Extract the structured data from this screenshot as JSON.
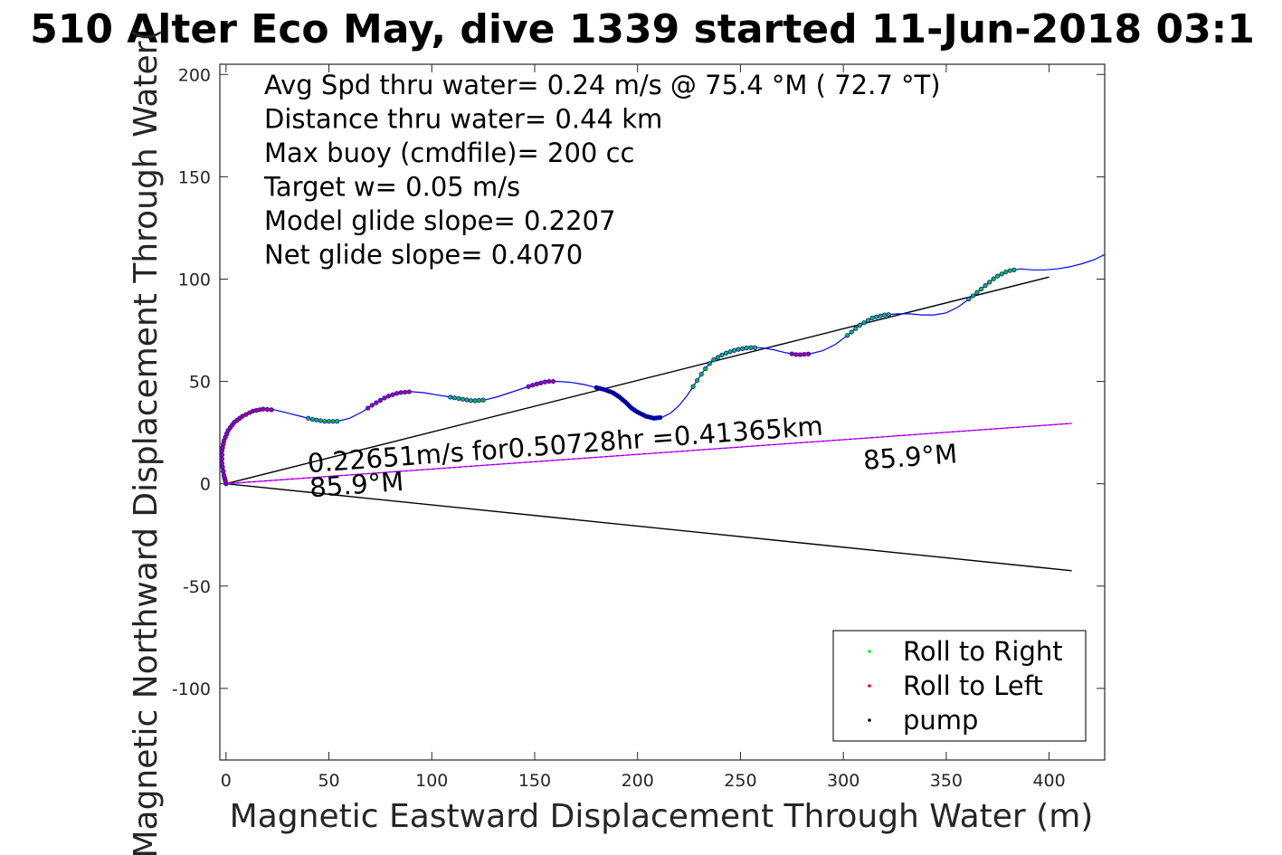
{
  "chart_data": {
    "type": "line",
    "title": "510 Alter Eco May, dive 1339 started 11-Jun-2018 03:1",
    "xlabel": "Magnetic Eastward Displacement Through Water (m)",
    "ylabel": "Magnetic Northward Displacement Through Water(",
    "xlim": [
      -3,
      427
    ],
    "ylim": [
      -135,
      205
    ],
    "xticks": [
      0,
      50,
      100,
      150,
      200,
      250,
      300,
      350,
      400
    ],
    "yticks": [
      200,
      150,
      100,
      50,
      0,
      -50,
      -100
    ],
    "x_tick_labels": [
      "0",
      "50",
      "100",
      "150",
      "200",
      "250",
      "300",
      "350",
      "400"
    ],
    "y_tick_labels": [
      "200",
      "150",
      "100",
      "50",
      "0",
      "-50",
      "-100"
    ],
    "grid": true,
    "stats": [
      "Avg Spd thru water=  0.24 m/s @  75.4 °M ( 72.7 °T)",
      "Distance thru water=  0.44 km",
      "Max buoy (cmdfile)= 200 cc",
      "Target w= 0.05 m/s",
      "Model glide slope= 0.2207",
      "Net glide slope= 0.4070"
    ],
    "track": {
      "color": "#0000ff",
      "points": [
        [
          0,
          0
        ],
        [
          -1,
          4
        ],
        [
          -2,
          10
        ],
        [
          -2,
          16
        ],
        [
          -1,
          21
        ],
        [
          1,
          26
        ],
        [
          4,
          30
        ],
        [
          8,
          33
        ],
        [
          13,
          35.5
        ],
        [
          18,
          36.5
        ],
        [
          24,
          36
        ],
        [
          30,
          34.5
        ],
        [
          36,
          33
        ],
        [
          42,
          31.5
        ],
        [
          48,
          30.5
        ],
        [
          54,
          30.5
        ],
        [
          60,
          32
        ],
        [
          66,
          35
        ],
        [
          72,
          39
        ],
        [
          78,
          42.5
        ],
        [
          84,
          44.5
        ],
        [
          90,
          45
        ],
        [
          96,
          44.5
        ],
        [
          102,
          43.5
        ],
        [
          108,
          42.5
        ],
        [
          114,
          41.5
        ],
        [
          120,
          40.5
        ],
        [
          126,
          41
        ],
        [
          132,
          42.5
        ],
        [
          138,
          44.5
        ],
        [
          144,
          46.5
        ],
        [
          150,
          48.5
        ],
        [
          156,
          50
        ],
        [
          162,
          50
        ],
        [
          168,
          49.5
        ],
        [
          174,
          48.5
        ],
        [
          180,
          47
        ],
        [
          184,
          46
        ],
        [
          188,
          44.5
        ],
        [
          191,
          42.5
        ],
        [
          194,
          40
        ],
        [
          197,
          37
        ],
        [
          200,
          35
        ],
        [
          204,
          33
        ],
        [
          208,
          32
        ],
        [
          212,
          32.5
        ],
        [
          216,
          34.5
        ],
        [
          220,
          38
        ],
        [
          224,
          43
        ],
        [
          228,
          49
        ],
        [
          232,
          55
        ],
        [
          236,
          60
        ],
        [
          242,
          63.5
        ],
        [
          248,
          65.5
        ],
        [
          254,
          66.5
        ],
        [
          260,
          66.5
        ],
        [
          266,
          65.5
        ],
        [
          272,
          64
        ],
        [
          278,
          63
        ],
        [
          284,
          63.5
        ],
        [
          290,
          65
        ],
        [
          296,
          68
        ],
        [
          302,
          72.5
        ],
        [
          308,
          77.5
        ],
        [
          314,
          81
        ],
        [
          320,
          82.5
        ],
        [
          326,
          83
        ],
        [
          332,
          83
        ],
        [
          338,
          82.5
        ],
        [
          344,
          82.5
        ],
        [
          350,
          83.5
        ],
        [
          356,
          86.5
        ],
        [
          362,
          91
        ],
        [
          368,
          96
        ],
        [
          374,
          101
        ],
        [
          380,
          104
        ],
        [
          386,
          105
        ],
        [
          392,
          104.5
        ],
        [
          398,
          104.5
        ],
        [
          404,
          105
        ],
        [
          410,
          106
        ],
        [
          416,
          107.5
        ],
        [
          422,
          109.5
        ],
        [
          427,
          112
        ]
      ]
    },
    "roll_right_segments": [
      [
        0,
        4
      ],
      [
        40,
        54
      ],
      [
        109,
        125
      ],
      [
        227,
        258
      ],
      [
        302,
        323
      ],
      [
        361,
        384
      ]
    ],
    "roll_left_segments": [
      [
        0,
        19
      ],
      [
        69,
        90
      ],
      [
        147,
        159
      ],
      [
        275,
        284
      ]
    ],
    "pump_segment": [
      180,
      211
    ],
    "lines": [
      {
        "name": "net-glide-line",
        "color": "#000000",
        "points": [
          [
            0,
            0
          ],
          [
            400,
            101
          ]
        ]
      },
      {
        "name": "heading-line",
        "color": "#000000",
        "points": [
          [
            0,
            0
          ],
          [
            411,
            -42.5
          ]
        ]
      },
      {
        "name": "current-line",
        "color": "#ff00ff",
        "points": [
          [
            0,
            0
          ],
          [
            411,
            29.5
          ]
        ]
      },
      {
        "name": "current-line-overlay",
        "color": "#0000ff",
        "points": [
          [
            0,
            0
          ],
          [
            411,
            29.5
          ]
        ]
      }
    ],
    "annotations": [
      {
        "text": "0.22651m/s for0.50728hr =0.41365km",
        "x": 40,
        "y": 5.5,
        "rotate": -4.2
      },
      {
        "text": "85.9°M",
        "x": 41,
        "y": -6.5,
        "rotate": -4.2
      },
      {
        "text": "85.9°M",
        "x": 310,
        "y": 7,
        "rotate": -4.2
      }
    ],
    "legend": {
      "position": "bottom-right",
      "entries": [
        {
          "label": "Roll to Right",
          "color": "#00ff00"
        },
        {
          "label": "Roll to Left",
          "color": "#ff0000"
        },
        {
          "label": "pump",
          "color": "#000000"
        }
      ]
    }
  }
}
